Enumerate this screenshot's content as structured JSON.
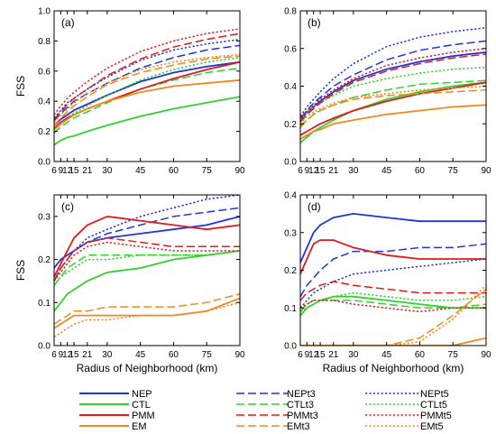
{
  "figure": {
    "colors": {
      "NEP": "#1f35d6",
      "CTL": "#33d02e",
      "PMM": "#e01b1b",
      "EM": "#f08a1e"
    },
    "legend": [
      {
        "name": "NEP",
        "color_key": "NEP",
        "style": "solid"
      },
      {
        "name": "NEPt3",
        "color_key": "NEP",
        "style": "dashed"
      },
      {
        "name": "NEPt5",
        "color_key": "NEP",
        "style": "dotted"
      },
      {
        "name": "CTL",
        "color_key": "CTL",
        "style": "solid"
      },
      {
        "name": "CTLt3",
        "color_key": "CTL",
        "style": "dashed"
      },
      {
        "name": "CTLt5",
        "color_key": "CTL",
        "style": "dotted"
      },
      {
        "name": "PMM",
        "color_key": "PMM",
        "style": "solid"
      },
      {
        "name": "PMMt3",
        "color_key": "PMM",
        "style": "dashed"
      },
      {
        "name": "PMMt5",
        "color_key": "PMM",
        "style": "dotted"
      },
      {
        "name": "EM",
        "color_key": "EM",
        "style": "solid"
      },
      {
        "name": "EMt3",
        "color_key": "EM",
        "style": "dashed"
      },
      {
        "name": "EMt5",
        "color_key": "EM",
        "style": "dotted"
      }
    ]
  },
  "chart_data": [
    {
      "type": "line",
      "panel_label": "(a)",
      "xlabel": "",
      "ylabel": "FSS",
      "xlim": [
        6,
        90
      ],
      "ylim": [
        0,
        1.0
      ],
      "xticks": [
        6,
        9,
        12,
        15,
        21,
        30,
        45,
        60,
        75,
        90
      ],
      "xticklabels": [
        "6",
        "9",
        "12",
        "15",
        "21",
        "30",
        "45",
        "60",
        "75",
        "90"
      ],
      "yticks": [
        0,
        0.2,
        0.4,
        0.6,
        0.8,
        1.0
      ],
      "yticklabels": [
        "0.0",
        "0.2",
        "0.4",
        "0.6",
        "0.8",
        "1.0"
      ],
      "x": [
        6,
        9,
        12,
        15,
        21,
        30,
        45,
        60,
        75,
        90
      ],
      "series": [
        {
          "name": "NEP",
          "values": [
            0.24,
            0.28,
            0.31,
            0.34,
            0.38,
            0.44,
            0.53,
            0.59,
            0.63,
            0.66
          ]
        },
        {
          "name": "NEPt3",
          "values": [
            0.27,
            0.32,
            0.36,
            0.4,
            0.45,
            0.52,
            0.62,
            0.69,
            0.74,
            0.77
          ]
        },
        {
          "name": "NEPt5",
          "values": [
            0.29,
            0.34,
            0.39,
            0.42,
            0.48,
            0.56,
            0.67,
            0.74,
            0.78,
            0.81
          ]
        },
        {
          "name": "CTL",
          "values": [
            0.11,
            0.14,
            0.16,
            0.17,
            0.2,
            0.24,
            0.3,
            0.35,
            0.39,
            0.43
          ]
        },
        {
          "name": "CTLt3",
          "values": [
            0.19,
            0.23,
            0.26,
            0.29,
            0.33,
            0.39,
            0.48,
            0.54,
            0.59,
            0.62
          ]
        },
        {
          "name": "CTLt5",
          "values": [
            0.21,
            0.25,
            0.29,
            0.32,
            0.37,
            0.44,
            0.54,
            0.61,
            0.66,
            0.69
          ]
        },
        {
          "name": "PMM",
          "values": [
            0.22,
            0.26,
            0.29,
            0.31,
            0.35,
            0.4,
            0.48,
            0.55,
            0.61,
            0.66
          ]
        },
        {
          "name": "PMMt3",
          "values": [
            0.28,
            0.33,
            0.38,
            0.42,
            0.48,
            0.57,
            0.68,
            0.76,
            0.81,
            0.85
          ]
        },
        {
          "name": "PMMt5",
          "values": [
            0.31,
            0.37,
            0.42,
            0.46,
            0.53,
            0.62,
            0.73,
            0.8,
            0.85,
            0.88
          ]
        },
        {
          "name": "EM",
          "values": [
            0.21,
            0.25,
            0.28,
            0.31,
            0.35,
            0.4,
            0.46,
            0.5,
            0.52,
            0.54
          ]
        },
        {
          "name": "EMt3",
          "values": [
            0.24,
            0.29,
            0.33,
            0.37,
            0.43,
            0.51,
            0.59,
            0.64,
            0.68,
            0.7
          ]
        },
        {
          "name": "EMt5",
          "values": [
            0.26,
            0.31,
            0.35,
            0.39,
            0.45,
            0.52,
            0.61,
            0.66,
            0.69,
            0.71
          ]
        }
      ]
    },
    {
      "type": "line",
      "panel_label": "(b)",
      "xlabel": "",
      "ylabel": "",
      "xlim": [
        6,
        90
      ],
      "ylim": [
        0,
        0.8
      ],
      "xticks": [
        6,
        9,
        12,
        15,
        21,
        30,
        45,
        60,
        75,
        90
      ],
      "xticklabels": [
        "6",
        "9",
        "12",
        "15",
        "21",
        "30",
        "45",
        "60",
        "75",
        "90"
      ],
      "yticks": [
        0,
        0.2,
        0.4,
        0.6,
        0.8
      ],
      "yticklabels": [
        "0.0",
        "0.2",
        "0.4",
        "0.6",
        "0.8"
      ],
      "x": [
        6,
        9,
        12,
        15,
        21,
        30,
        45,
        60,
        75,
        90
      ],
      "series": [
        {
          "name": "NEP",
          "values": [
            0.22,
            0.26,
            0.29,
            0.32,
            0.37,
            0.43,
            0.49,
            0.53,
            0.56,
            0.58
          ]
        },
        {
          "name": "NEPt3",
          "values": [
            0.23,
            0.27,
            0.31,
            0.34,
            0.4,
            0.46,
            0.54,
            0.59,
            0.62,
            0.64
          ]
        },
        {
          "name": "NEPt5",
          "values": [
            0.24,
            0.29,
            0.33,
            0.37,
            0.44,
            0.52,
            0.61,
            0.66,
            0.69,
            0.71
          ]
        },
        {
          "name": "CTL",
          "values": [
            0.1,
            0.13,
            0.16,
            0.18,
            0.22,
            0.27,
            0.33,
            0.37,
            0.4,
            0.42
          ]
        },
        {
          "name": "CTLt3",
          "values": [
            0.18,
            0.22,
            0.25,
            0.27,
            0.3,
            0.34,
            0.38,
            0.41,
            0.42,
            0.43
          ]
        },
        {
          "name": "CTLt5",
          "values": [
            0.22,
            0.26,
            0.29,
            0.31,
            0.35,
            0.4,
            0.44,
            0.47,
            0.49,
            0.5
          ]
        },
        {
          "name": "PMM",
          "values": [
            0.14,
            0.16,
            0.18,
            0.2,
            0.23,
            0.27,
            0.32,
            0.36,
            0.39,
            0.42
          ]
        },
        {
          "name": "PMMt3",
          "values": [
            0.21,
            0.25,
            0.28,
            0.31,
            0.36,
            0.42,
            0.48,
            0.52,
            0.55,
            0.57
          ]
        },
        {
          "name": "PMMt5",
          "values": [
            0.23,
            0.27,
            0.3,
            0.33,
            0.38,
            0.44,
            0.51,
            0.55,
            0.58,
            0.6
          ]
        },
        {
          "name": "EM",
          "values": [
            0.12,
            0.14,
            0.16,
            0.17,
            0.2,
            0.22,
            0.25,
            0.27,
            0.29,
            0.3
          ]
        },
        {
          "name": "EMt3",
          "values": [
            0.19,
            0.22,
            0.25,
            0.27,
            0.3,
            0.33,
            0.35,
            0.36,
            0.37,
            0.38
          ]
        },
        {
          "name": "EMt5",
          "values": [
            0.2,
            0.24,
            0.26,
            0.28,
            0.31,
            0.34,
            0.36,
            0.38,
            0.39,
            0.4
          ]
        }
      ]
    },
    {
      "type": "line",
      "panel_label": "(c)",
      "xlabel": "Radius of Neighborhood (km)",
      "ylabel": "FSS",
      "xlim": [
        6,
        90
      ],
      "ylim": [
        0,
        0.35
      ],
      "xticks": [
        6,
        9,
        12,
        15,
        21,
        30,
        45,
        60,
        75,
        90
      ],
      "xticklabels": [
        "6",
        "9",
        "12",
        "15",
        "21",
        "30",
        "45",
        "60",
        "75",
        "90"
      ],
      "yticks": [
        0,
        0.1,
        0.2,
        0.3
      ],
      "yticklabels": [
        "0.0",
        "0.1",
        "0.2",
        "0.3"
      ],
      "x": [
        6,
        9,
        12,
        15,
        21,
        30,
        45,
        60,
        75,
        90
      ],
      "series": [
        {
          "name": "NEP",
          "values": [
            0.18,
            0.2,
            0.21,
            0.22,
            0.24,
            0.25,
            0.26,
            0.27,
            0.28,
            0.3
          ]
        },
        {
          "name": "NEPt3",
          "values": [
            0.15,
            0.18,
            0.2,
            0.22,
            0.24,
            0.26,
            0.28,
            0.3,
            0.31,
            0.32
          ]
        },
        {
          "name": "NEPt5",
          "values": [
            0.15,
            0.18,
            0.2,
            0.22,
            0.25,
            0.27,
            0.3,
            0.32,
            0.34,
            0.35
          ]
        },
        {
          "name": "CTL",
          "values": [
            0.08,
            0.1,
            0.12,
            0.13,
            0.15,
            0.17,
            0.18,
            0.2,
            0.21,
            0.22
          ]
        },
        {
          "name": "CTLt3",
          "values": [
            0.14,
            0.16,
            0.18,
            0.19,
            0.21,
            0.21,
            0.21,
            0.21,
            0.21,
            0.22
          ]
        },
        {
          "name": "CTLt5",
          "values": [
            0.14,
            0.16,
            0.17,
            0.18,
            0.2,
            0.2,
            0.21,
            0.21,
            0.21,
            0.22
          ]
        },
        {
          "name": "PMM",
          "values": [
            0.16,
            0.19,
            0.22,
            0.25,
            0.28,
            0.3,
            0.29,
            0.28,
            0.27,
            0.28
          ]
        },
        {
          "name": "PMMt3",
          "values": [
            0.15,
            0.18,
            0.2,
            0.22,
            0.24,
            0.25,
            0.24,
            0.23,
            0.23,
            0.23
          ]
        },
        {
          "name": "PMMt5",
          "values": [
            0.15,
            0.17,
            0.19,
            0.21,
            0.23,
            0.24,
            0.23,
            0.22,
            0.22,
            0.22
          ]
        },
        {
          "name": "EM",
          "values": [
            0.04,
            0.05,
            0.06,
            0.07,
            0.07,
            0.07,
            0.07,
            0.07,
            0.08,
            0.11
          ]
        },
        {
          "name": "EMt3",
          "values": [
            0.05,
            0.06,
            0.07,
            0.08,
            0.08,
            0.09,
            0.09,
            0.09,
            0.1,
            0.12
          ]
        },
        {
          "name": "EMt5",
          "values": [
            0.02,
            0.03,
            0.04,
            0.05,
            0.06,
            0.06,
            0.07,
            0.07,
            0.08,
            0.1
          ]
        }
      ]
    },
    {
      "type": "line",
      "panel_label": "(d)",
      "xlabel": "Radius of Neighborhood (km)",
      "ylabel": "",
      "xlim": [
        6,
        90
      ],
      "ylim": [
        0,
        0.4
      ],
      "xticks": [
        6,
        9,
        12,
        15,
        21,
        30,
        45,
        60,
        75,
        90
      ],
      "xticklabels": [
        "6",
        "9",
        "12",
        "15",
        "21",
        "30",
        "45",
        "60",
        "75",
        "90"
      ],
      "yticks": [
        0,
        0.1,
        0.2,
        0.3,
        0.4
      ],
      "yticklabels": [
        "0.0",
        "0.1",
        "0.2",
        "0.3",
        "0.4"
      ],
      "x": [
        6,
        9,
        12,
        15,
        21,
        30,
        45,
        60,
        75,
        90
      ],
      "series": [
        {
          "name": "NEP",
          "values": [
            0.22,
            0.26,
            0.3,
            0.32,
            0.34,
            0.35,
            0.34,
            0.33,
            0.33,
            0.33
          ]
        },
        {
          "name": "NEPt3",
          "values": [
            0.13,
            0.16,
            0.18,
            0.2,
            0.23,
            0.25,
            0.25,
            0.26,
            0.26,
            0.27
          ]
        },
        {
          "name": "NEPt5",
          "values": [
            0.1,
            0.12,
            0.14,
            0.15,
            0.17,
            0.19,
            0.2,
            0.21,
            0.22,
            0.23
          ]
        },
        {
          "name": "CTL",
          "values": [
            0.08,
            0.1,
            0.11,
            0.12,
            0.13,
            0.13,
            0.12,
            0.11,
            0.1,
            0.1
          ]
        },
        {
          "name": "CTLt3",
          "values": [
            0.09,
            0.11,
            0.12,
            0.12,
            0.12,
            0.12,
            0.11,
            0.1,
            0.1,
            0.11
          ]
        },
        {
          "name": "CTLt5",
          "values": [
            0.09,
            0.1,
            0.11,
            0.12,
            0.13,
            0.14,
            0.13,
            0.12,
            0.12,
            0.13
          ]
        },
        {
          "name": "PMM",
          "values": [
            0.19,
            0.23,
            0.27,
            0.28,
            0.28,
            0.26,
            0.24,
            0.23,
            0.23,
            0.23
          ]
        },
        {
          "name": "PMMt3",
          "values": [
            0.12,
            0.14,
            0.15,
            0.16,
            0.17,
            0.16,
            0.15,
            0.14,
            0.14,
            0.14
          ]
        },
        {
          "name": "PMMt5",
          "values": [
            0.1,
            0.11,
            0.12,
            0.12,
            0.12,
            0.11,
            0.1,
            0.09,
            0.1,
            0.1
          ]
        },
        {
          "name": "EM",
          "values": [
            0.0,
            0.0,
            0.0,
            0.0,
            0.0,
            0.0,
            0.0,
            0.0,
            0.0,
            0.02
          ]
        },
        {
          "name": "EMt3",
          "values": [
            0.0,
            0.0,
            0.0,
            0.0,
            0.0,
            0.0,
            0.0,
            0.02,
            0.08,
            0.15
          ]
        },
        {
          "name": "EMt5",
          "values": [
            0.0,
            0.0,
            0.0,
            0.0,
            0.0,
            0.0,
            0.0,
            0.01,
            0.07,
            0.16
          ]
        }
      ]
    }
  ]
}
